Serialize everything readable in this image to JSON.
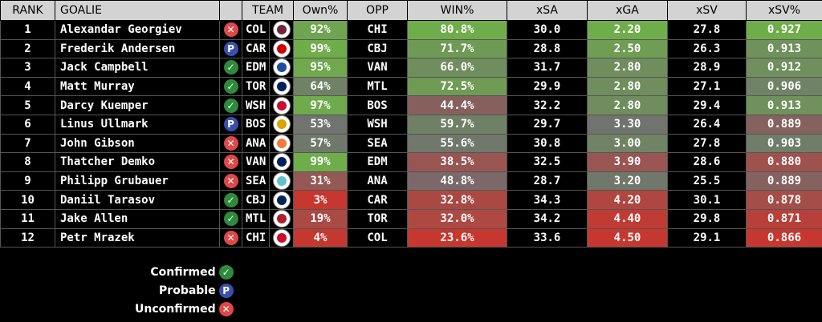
{
  "columns": [
    "RANK",
    "GOALIE",
    "",
    "TEAM",
    "",
    "Own%",
    "OPP",
    "WIN%",
    "xSA",
    "xGA",
    "xSV",
    "xSV%"
  ],
  "status_types": {
    "confirmed": {
      "label": "Confirmed",
      "symbol": "✓",
      "color": "#2e8b3e",
      "icon": "check-icon"
    },
    "probable": {
      "label": "Probable",
      "symbol": "P",
      "color": "#3a4fb0",
      "icon": "p-icon"
    },
    "unconfirmed": {
      "label": "Unconfirmed",
      "symbol": "✕",
      "color": "#e04848",
      "icon": "x-icon"
    }
  },
  "legend_order": [
    "confirmed",
    "probable",
    "unconfirmed"
  ],
  "team_logo_colors": {
    "COL": "#6f263d",
    "CAR": "#cc0000",
    "EDM": "#1f4e9c",
    "TOR": "#00205b",
    "WSH": "#c8102e",
    "BOS": "#d9a400",
    "ANA": "#f47a38",
    "VAN": "#00205b",
    "SEA": "#5ec3c7",
    "CBJ": "#002654",
    "MTL": "#af1e2d",
    "CHI": "#cf0a2c"
  },
  "color_scale": {
    "bad": "#c6372f",
    "mid": "#707070",
    "good": "#6fad4a"
  },
  "chart_data": {
    "type": "table",
    "rows": [
      {
        "rank": "1",
        "goalie": "Alexandar Georgiev",
        "status": "unconfirmed",
        "team": "COL",
        "own": "92%",
        "opp": "CHI",
        "win": "80.8%",
        "xsa": "30.0",
        "xga": "2.20",
        "xsv": "27.8",
        "xsvp": "0.927"
      },
      {
        "rank": "2",
        "goalie": "Frederik Andersen",
        "status": "probable",
        "team": "CAR",
        "own": "99%",
        "opp": "CBJ",
        "win": "71.7%",
        "xsa": "28.8",
        "xga": "2.50",
        "xsv": "26.3",
        "xsvp": "0.913"
      },
      {
        "rank": "3",
        "goalie": "Jack Campbell",
        "status": "confirmed",
        "team": "EDM",
        "own": "95%",
        "opp": "VAN",
        "win": "66.0%",
        "xsa": "31.7",
        "xga": "2.80",
        "xsv": "28.9",
        "xsvp": "0.912"
      },
      {
        "rank": "4",
        "goalie": "Matt Murray",
        "status": "confirmed",
        "team": "TOR",
        "own": "64%",
        "opp": "MTL",
        "win": "72.5%",
        "xsa": "29.9",
        "xga": "2.80",
        "xsv": "27.1",
        "xsvp": "0.906"
      },
      {
        "rank": "5",
        "goalie": "Darcy Kuemper",
        "status": "confirmed",
        "team": "WSH",
        "own": "97%",
        "opp": "BOS",
        "win": "44.4%",
        "xsa": "32.2",
        "xga": "2.80",
        "xsv": "29.4",
        "xsvp": "0.913"
      },
      {
        "rank": "6",
        "goalie": "Linus Ullmark",
        "status": "probable",
        "team": "BOS",
        "own": "53%",
        "opp": "WSH",
        "win": "59.7%",
        "xsa": "29.7",
        "xga": "3.30",
        "xsv": "26.4",
        "xsvp": "0.889"
      },
      {
        "rank": "7",
        "goalie": "John Gibson",
        "status": "unconfirmed",
        "team": "ANA",
        "own": "57%",
        "opp": "SEA",
        "win": "55.6%",
        "xsa": "30.8",
        "xga": "3.00",
        "xsv": "27.8",
        "xsvp": "0.903"
      },
      {
        "rank": "8",
        "goalie": "Thatcher Demko",
        "status": "unconfirmed",
        "team": "VAN",
        "own": "99%",
        "opp": "EDM",
        "win": "38.5%",
        "xsa": "32.5",
        "xga": "3.90",
        "xsv": "28.6",
        "xsvp": "0.880"
      },
      {
        "rank": "9",
        "goalie": "Philipp Grubauer",
        "status": "unconfirmed",
        "team": "SEA",
        "own": "31%",
        "opp": "ANA",
        "win": "48.8%",
        "xsa": "28.7",
        "xga": "3.20",
        "xsv": "25.5",
        "xsvp": "0.889"
      },
      {
        "rank": "10",
        "goalie": "Daniil Tarasov",
        "status": "confirmed",
        "team": "CBJ",
        "own": "3%",
        "opp": "CAR",
        "win": "32.8%",
        "xsa": "34.3",
        "xga": "4.20",
        "xsv": "30.1",
        "xsvp": "0.878"
      },
      {
        "rank": "11",
        "goalie": "Jake Allen",
        "status": "confirmed",
        "team": "MTL",
        "own": "19%",
        "opp": "TOR",
        "win": "32.0%",
        "xsa": "34.2",
        "xga": "4.40",
        "xsv": "29.8",
        "xsvp": "0.871"
      },
      {
        "rank": "12",
        "goalie": "Petr Mrazek",
        "status": "unconfirmed",
        "team": "CHI",
        "own": "4%",
        "opp": "COL",
        "win": "23.6%",
        "xsa": "33.6",
        "xga": "4.50",
        "xsv": "29.1",
        "xsvp": "0.866"
      }
    ]
  }
}
